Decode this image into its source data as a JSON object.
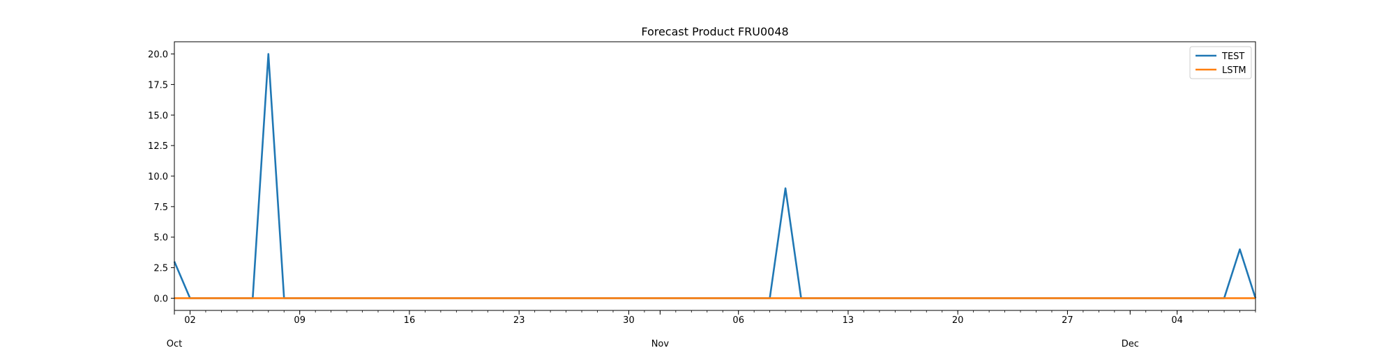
{
  "chart_data": {
    "type": "line",
    "title": "Forecast Product FRU0048",
    "xlabel": "",
    "ylabel": "",
    "x_start": "2023-10-01",
    "x_end": "2023-12-09",
    "ylim": [
      -1.0,
      21.0
    ],
    "yticks": [
      0.0,
      2.5,
      5.0,
      7.5,
      10.0,
      12.5,
      15.0,
      17.5,
      20.0
    ],
    "ytick_labels": [
      "0.0",
      "2.5",
      "5.0",
      "7.5",
      "10.0",
      "12.5",
      "15.0",
      "17.5",
      "20.0"
    ],
    "xticks_major": [
      {
        "date": "2023-10-02",
        "label": "02"
      },
      {
        "date": "2023-10-09",
        "label": "09"
      },
      {
        "date": "2023-10-16",
        "label": "16"
      },
      {
        "date": "2023-10-23",
        "label": "23"
      },
      {
        "date": "2023-10-30",
        "label": "30"
      },
      {
        "date": "2023-11-06",
        "label": "06"
      },
      {
        "date": "2023-11-13",
        "label": "13"
      },
      {
        "date": "2023-11-20",
        "label": "20"
      },
      {
        "date": "2023-11-27",
        "label": "27"
      },
      {
        "date": "2023-12-04",
        "label": "04"
      }
    ],
    "xticks_month": [
      {
        "date": "2023-10-01",
        "label": "Oct"
      },
      {
        "date": "2023-11-01",
        "label": "Nov"
      },
      {
        "date": "2023-12-01",
        "label": "Dec"
      }
    ],
    "grid": false,
    "legend_position": "top-right",
    "series": [
      {
        "name": "TEST",
        "color": "#1f77b4",
        "points": [
          {
            "x": "2023-10-01",
            "y": 3
          },
          {
            "x": "2023-10-02",
            "y": 0
          },
          {
            "x": "2023-10-06",
            "y": 0
          },
          {
            "x": "2023-10-07",
            "y": 20
          },
          {
            "x": "2023-10-08",
            "y": 0
          },
          {
            "x": "2023-11-08",
            "y": 0
          },
          {
            "x": "2023-11-09",
            "y": 9
          },
          {
            "x": "2023-11-10",
            "y": 0
          },
          {
            "x": "2023-12-07",
            "y": 0
          },
          {
            "x": "2023-12-08",
            "y": 4
          },
          {
            "x": "2023-12-09",
            "y": 0
          }
        ]
      },
      {
        "name": "LSTM",
        "color": "#ff7f0e",
        "points": [
          {
            "x": "2023-10-01",
            "y": 0
          },
          {
            "x": "2023-12-09",
            "y": 0
          }
        ]
      }
    ]
  }
}
